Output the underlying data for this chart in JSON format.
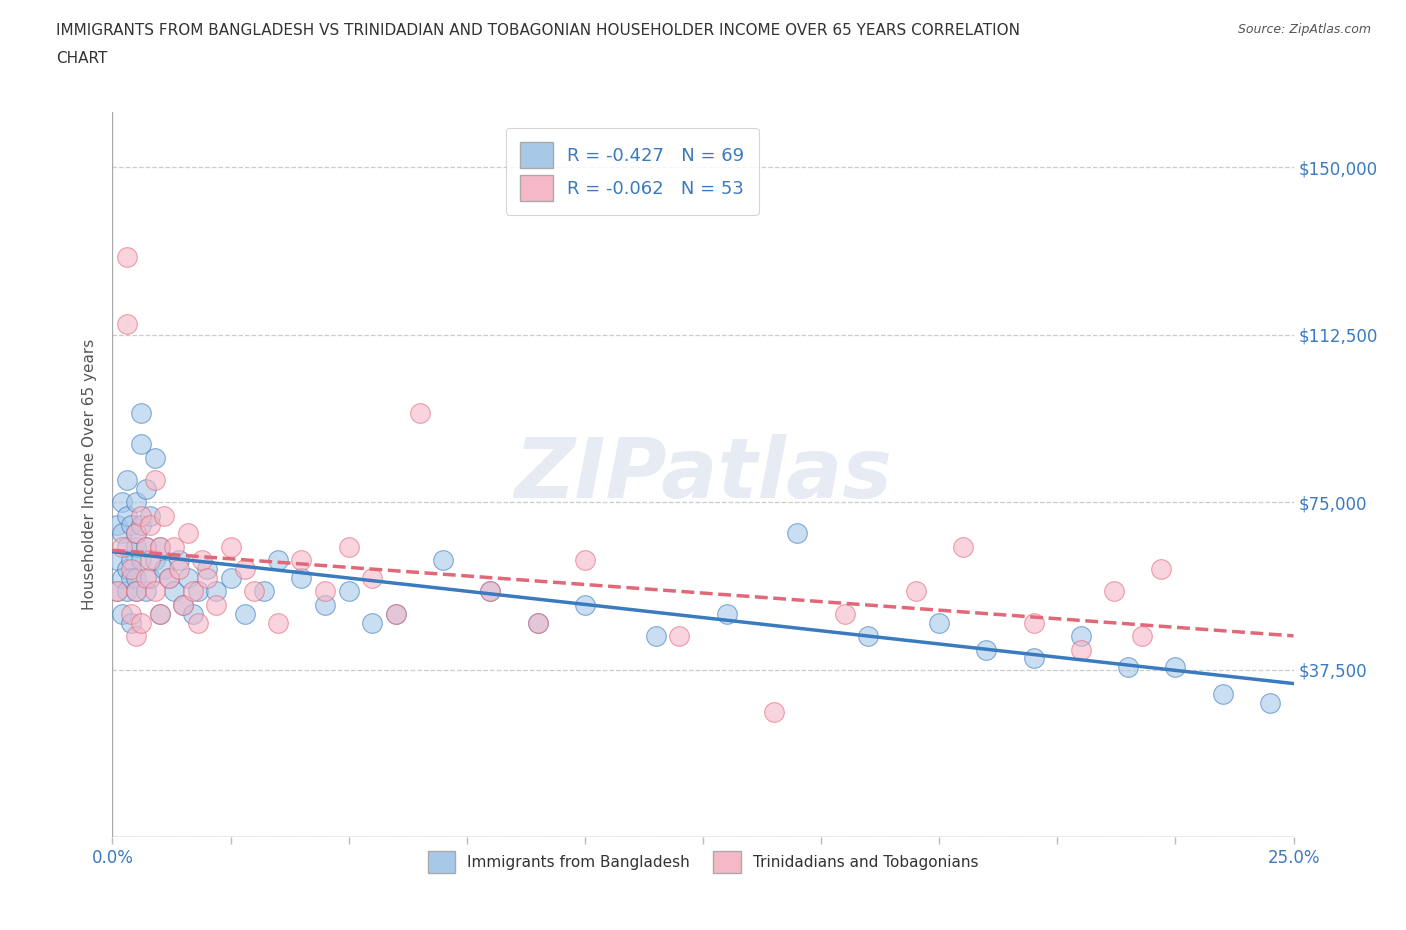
{
  "title_line1": "IMMIGRANTS FROM BANGLADESH VS TRINIDADIAN AND TOBAGONIAN HOUSEHOLDER INCOME OVER 65 YEARS CORRELATION",
  "title_line2": "CHART",
  "source": "Source: ZipAtlas.com",
  "ylabel": "Householder Income Over 65 years",
  "xlim": [
    0.0,
    0.25
  ],
  "ylim": [
    0,
    162500
  ],
  "xticks": [
    0.0,
    0.025,
    0.05,
    0.075,
    0.1,
    0.125,
    0.15,
    0.175,
    0.2,
    0.225,
    0.25
  ],
  "xticklabels": [
    "0.0%",
    "",
    "",
    "",
    "",
    "",
    "",
    "",
    "",
    "",
    "25.0%"
  ],
  "ytick_positions": [
    0,
    37500,
    75000,
    112500,
    150000
  ],
  "ytick_labels": [
    "",
    "$37,500",
    "$75,000",
    "$112,500",
    "$150,000"
  ],
  "R_bangladesh": -0.427,
  "N_bangladesh": 69,
  "R_trinidadian": -0.062,
  "N_trinidadian": 53,
  "color_bangladesh": "#a8c8e8",
  "color_trinidadian": "#f5b8c8",
  "line_color_bangladesh": "#3a7abf",
  "line_color_trinidadian": "#e06878",
  "bg_color": "#ffffff",
  "watermark": "ZIPatlas",
  "bangladesh_x": [
    0.001,
    0.001,
    0.001,
    0.002,
    0.002,
    0.002,
    0.002,
    0.003,
    0.003,
    0.003,
    0.003,
    0.003,
    0.004,
    0.004,
    0.004,
    0.004,
    0.005,
    0.005,
    0.005,
    0.005,
    0.005,
    0.006,
    0.006,
    0.006,
    0.006,
    0.007,
    0.007,
    0.007,
    0.008,
    0.008,
    0.009,
    0.009,
    0.01,
    0.01,
    0.011,
    0.012,
    0.013,
    0.014,
    0.015,
    0.016,
    0.017,
    0.018,
    0.02,
    0.022,
    0.025,
    0.028,
    0.032,
    0.035,
    0.04,
    0.045,
    0.05,
    0.055,
    0.06,
    0.07,
    0.08,
    0.09,
    0.1,
    0.115,
    0.13,
    0.145,
    0.16,
    0.175,
    0.185,
    0.195,
    0.205,
    0.215,
    0.225,
    0.235,
    0.245
  ],
  "bangladesh_y": [
    62000,
    70000,
    55000,
    75000,
    68000,
    58000,
    50000,
    72000,
    80000,
    60000,
    65000,
    55000,
    62000,
    70000,
    58000,
    48000,
    75000,
    65000,
    58000,
    55000,
    68000,
    95000,
    88000,
    70000,
    62000,
    78000,
    65000,
    55000,
    72000,
    58000,
    85000,
    62000,
    65000,
    50000,
    60000,
    58000,
    55000,
    62000,
    52000,
    58000,
    50000,
    55000,
    60000,
    55000,
    58000,
    50000,
    55000,
    62000,
    58000,
    52000,
    55000,
    48000,
    50000,
    62000,
    55000,
    48000,
    52000,
    45000,
    50000,
    68000,
    45000,
    48000,
    42000,
    40000,
    45000,
    38000,
    38000,
    32000,
    30000
  ],
  "trinidadian_x": [
    0.001,
    0.002,
    0.003,
    0.003,
    0.004,
    0.004,
    0.005,
    0.005,
    0.005,
    0.006,
    0.006,
    0.007,
    0.007,
    0.008,
    0.008,
    0.009,
    0.009,
    0.01,
    0.01,
    0.011,
    0.012,
    0.013,
    0.014,
    0.015,
    0.016,
    0.017,
    0.018,
    0.019,
    0.02,
    0.022,
    0.025,
    0.028,
    0.03,
    0.035,
    0.04,
    0.045,
    0.05,
    0.055,
    0.06,
    0.065,
    0.08,
    0.09,
    0.1,
    0.12,
    0.14,
    0.155,
    0.17,
    0.18,
    0.195,
    0.205,
    0.212,
    0.218,
    0.222
  ],
  "trinidadian_y": [
    55000,
    65000,
    130000,
    115000,
    60000,
    50000,
    68000,
    55000,
    45000,
    72000,
    48000,
    65000,
    58000,
    70000,
    62000,
    55000,
    80000,
    50000,
    65000,
    72000,
    58000,
    65000,
    60000,
    52000,
    68000,
    55000,
    48000,
    62000,
    58000,
    52000,
    65000,
    60000,
    55000,
    48000,
    62000,
    55000,
    65000,
    58000,
    50000,
    95000,
    55000,
    48000,
    62000,
    45000,
    28000,
    50000,
    55000,
    65000,
    48000,
    42000,
    55000,
    45000,
    60000
  ]
}
